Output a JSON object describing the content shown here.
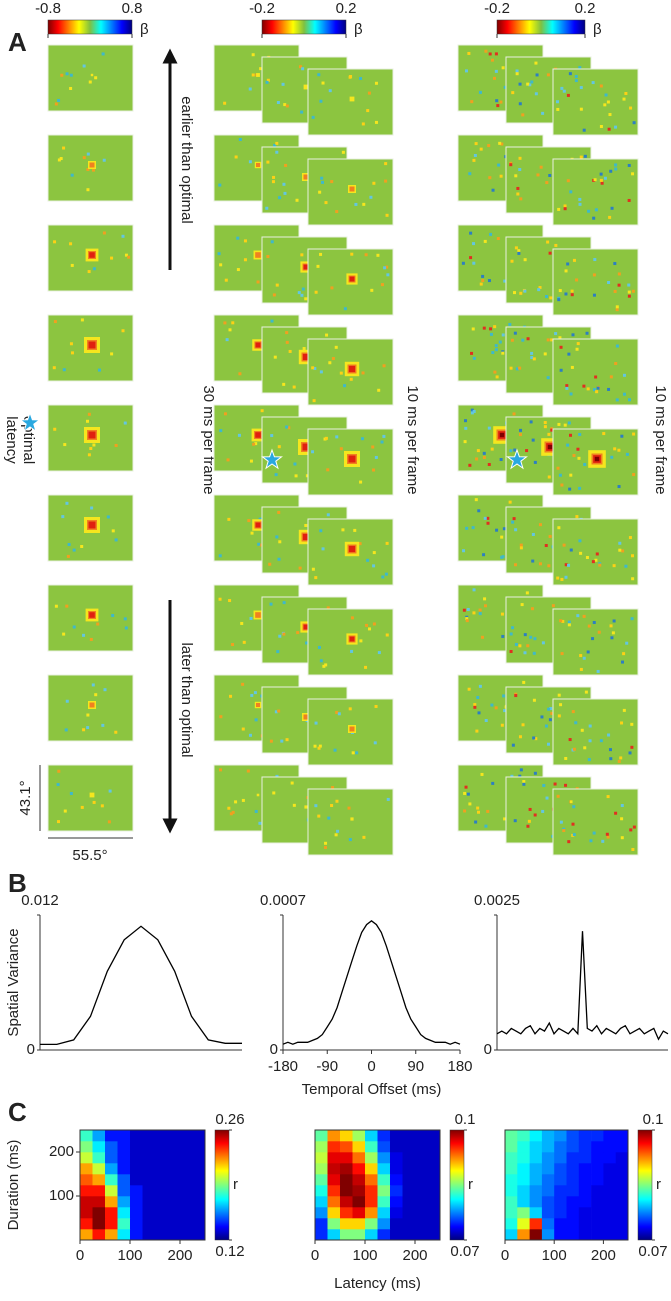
{
  "panel_labels": {
    "a": "A",
    "b": "B",
    "c": "C"
  },
  "panel_a": {
    "colorbars": [
      {
        "ticks": [
          -0.8,
          0.8
        ],
        "label": "β"
      },
      {
        "ticks": [
          -0.2,
          0.2
        ],
        "label": "β"
      },
      {
        "ticks": [
          -0.2,
          0.2
        ],
        "label": "β"
      }
    ],
    "earlier": "earlier than optimal",
    "later": "later than optimal",
    "optimal": [
      "optimal",
      "latency"
    ],
    "frame_rates": [
      "30 ms per frame",
      "10 ms per frame",
      "10 ms per frame"
    ],
    "scale_height": "43.1°",
    "scale_width": "55.5°"
  },
  "chart_data": [
    {
      "type": "line",
      "color": "#000000",
      "x": [
        -180,
        -150,
        -120,
        -90,
        -60,
        -30,
        0,
        30,
        60,
        90,
        120,
        150,
        180
      ],
      "values": [
        0.0005,
        0.0005,
        0.0009,
        0.003,
        0.007,
        0.0098,
        0.011,
        0.0098,
        0.007,
        0.003,
        0.0009,
        0.0006,
        0.0006
      ],
      "xlim": [
        -180,
        180
      ],
      "ylim": [
        0,
        0.012
      ],
      "yticks": [
        0,
        0.012
      ],
      "ylabel": "Spatial Variance"
    },
    {
      "type": "line",
      "color": "#000000",
      "x": [
        -180,
        -170,
        -160,
        -150,
        -140,
        -130,
        -120,
        -110,
        -100,
        -90,
        -80,
        -70,
        -60,
        -50,
        -40,
        -30,
        -20,
        -10,
        0,
        10,
        20,
        30,
        40,
        50,
        60,
        70,
        80,
        90,
        100,
        110,
        120,
        130,
        140,
        150,
        160,
        170,
        180
      ],
      "values": [
        3e-05,
        4e-05,
        3e-05,
        4e-05,
        4e-05,
        4e-05,
        5e-05,
        6e-05,
        8e-05,
        0.00012,
        0.00016,
        0.00022,
        0.0003,
        0.00038,
        0.00046,
        0.00054,
        0.00061,
        0.00065,
        0.00067,
        0.00065,
        0.00061,
        0.00054,
        0.00046,
        0.00038,
        0.0003,
        0.00022,
        0.00016,
        0.00012,
        8e-05,
        6e-05,
        5e-05,
        4e-05,
        4e-05,
        4e-05,
        3e-05,
        4e-05,
        3e-05
      ],
      "xlim": [
        -180,
        180
      ],
      "ylim": [
        0,
        0.0007
      ],
      "yticks": [
        0,
        0.0007
      ],
      "xticks": [
        -180,
        -90,
        0,
        90,
        180
      ],
      "xlabel": "Temporal Offset (ms)"
    },
    {
      "type": "line",
      "color": "#000000",
      "x": [
        -180,
        -170,
        -160,
        -150,
        -140,
        -130,
        -120,
        -110,
        -100,
        -90,
        -80,
        -70,
        -60,
        -50,
        -40,
        -30,
        -20,
        -10,
        0,
        10,
        20,
        30,
        40,
        50,
        60,
        70,
        80,
        90,
        100,
        110,
        120,
        130,
        140,
        150,
        160,
        170,
        180
      ],
      "values": [
        0.0003,
        0.00035,
        0.0003,
        0.0004,
        0.00035,
        0.0003,
        0.0004,
        0.00045,
        0.0003,
        0.0004,
        0.00035,
        0.0005,
        0.0003,
        0.0004,
        0.00035,
        0.0003,
        0.0004,
        0.0003,
        0.0022,
        0.0004,
        0.00035,
        0.00045,
        0.0003,
        0.0004,
        0.00035,
        0.0003,
        0.0004,
        0.00045,
        0.0003,
        0.00035,
        0.0004,
        0.0003,
        0.00035,
        0.0004,
        0.0002,
        0.00035,
        0.0003
      ],
      "xlim": [
        -180,
        180
      ],
      "ylim": [
        0,
        0.0025
      ],
      "yticks": [
        0,
        0.0025
      ]
    },
    {
      "type": "heatmap",
      "colormap": "jet",
      "x": [
        12.5,
        37.5,
        62.5,
        87.5,
        112.5,
        137.5,
        162.5,
        187.5,
        212.5,
        237.5
      ],
      "y": [
        12.5,
        37.5,
        62.5,
        87.5,
        112.5,
        137.5,
        162.5,
        187.5,
        212.5,
        237.5
      ],
      "values": [
        [
          0.22,
          0.24,
          0.22,
          0.17,
          0.14,
          0.13,
          0.13,
          0.13,
          0.13,
          0.13
        ],
        [
          0.24,
          0.26,
          0.24,
          0.18,
          0.14,
          0.13,
          0.13,
          0.13,
          0.13,
          0.13
        ],
        [
          0.25,
          0.26,
          0.24,
          0.17,
          0.14,
          0.13,
          0.13,
          0.13,
          0.13,
          0.13
        ],
        [
          0.25,
          0.25,
          0.22,
          0.16,
          0.14,
          0.13,
          0.13,
          0.13,
          0.13,
          0.13
        ],
        [
          0.24,
          0.24,
          0.2,
          0.15,
          0.14,
          0.13,
          0.13,
          0.13,
          0.13,
          0.13
        ],
        [
          0.23,
          0.22,
          0.18,
          0.15,
          0.13,
          0.13,
          0.13,
          0.13,
          0.13,
          0.13
        ],
        [
          0.22,
          0.2,
          0.16,
          0.14,
          0.13,
          0.13,
          0.13,
          0.13,
          0.13,
          0.13
        ],
        [
          0.2,
          0.18,
          0.15,
          0.14,
          0.13,
          0.13,
          0.13,
          0.13,
          0.13,
          0.13
        ],
        [
          0.19,
          0.17,
          0.15,
          0.14,
          0.13,
          0.13,
          0.13,
          0.13,
          0.13,
          0.13
        ],
        [
          0.18,
          0.16,
          0.14,
          0.14,
          0.13,
          0.13,
          0.13,
          0.13,
          0.13,
          0.13
        ]
      ],
      "xlim": [
        0,
        250
      ],
      "ylim": [
        0,
        250
      ],
      "xticks": [
        0,
        100,
        200
      ],
      "yticks": [
        100,
        200
      ],
      "ylabel": "Duration (ms)",
      "colorbar": {
        "ticks": [
          0.12,
          0.26
        ],
        "label": "r"
      }
    },
    {
      "type": "heatmap",
      "colormap": "jet",
      "x": [
        12.5,
        37.5,
        62.5,
        87.5,
        112.5,
        137.5,
        162.5,
        187.5,
        212.5,
        237.5
      ],
      "y": [
        12.5,
        37.5,
        62.5,
        87.5,
        112.5,
        137.5,
        162.5,
        187.5,
        212.5,
        237.5
      ],
      "values": [
        [
          0.075,
          0.08,
          0.085,
          0.085,
          0.08,
          0.075,
          0.072,
          0.072,
          0.072,
          0.072
        ],
        [
          0.075,
          0.085,
          0.09,
          0.09,
          0.085,
          0.078,
          0.072,
          0.072,
          0.072,
          0.072
        ],
        [
          0.078,
          0.09,
          0.095,
          0.097,
          0.092,
          0.08,
          0.073,
          0.072,
          0.072,
          0.072
        ],
        [
          0.08,
          0.093,
          0.098,
          0.1,
          0.095,
          0.083,
          0.074,
          0.072,
          0.072,
          0.072
        ],
        [
          0.082,
          0.095,
          0.1,
          0.099,
          0.095,
          0.085,
          0.075,
          0.072,
          0.072,
          0.072
        ],
        [
          0.084,
          0.097,
          0.1,
          0.098,
          0.093,
          0.083,
          0.074,
          0.072,
          0.072,
          0.072
        ],
        [
          0.086,
          0.098,
          0.099,
          0.096,
          0.09,
          0.08,
          0.073,
          0.072,
          0.072,
          0.072
        ],
        [
          0.087,
          0.097,
          0.097,
          0.093,
          0.086,
          0.078,
          0.073,
          0.072,
          0.072,
          0.072
        ],
        [
          0.086,
          0.095,
          0.094,
          0.09,
          0.083,
          0.076,
          0.072,
          0.072,
          0.072,
          0.072
        ],
        [
          0.084,
          0.092,
          0.09,
          0.086,
          0.08,
          0.075,
          0.072,
          0.072,
          0.072,
          0.072
        ]
      ],
      "xlim": [
        0,
        250
      ],
      "ylim": [
        0,
        250
      ],
      "xticks": [
        0,
        100,
        200
      ],
      "xlabel": "Latency (ms)",
      "colorbar": {
        "ticks": [
          0.07,
          0.1
        ],
        "label": "r"
      }
    },
    {
      "type": "heatmap",
      "colormap": "jet",
      "x": [
        12.5,
        37.5,
        62.5,
        87.5,
        112.5,
        137.5,
        162.5,
        187.5,
        212.5,
        237.5
      ],
      "y": [
        12.5,
        37.5,
        62.5,
        87.5,
        112.5,
        137.5,
        162.5,
        187.5,
        212.5,
        237.5
      ],
      "values": [
        [
          0.08,
          0.092,
          0.1,
          0.078,
          0.074,
          0.074,
          0.073,
          0.073,
          0.073,
          0.073
        ],
        [
          0.082,
          0.088,
          0.095,
          0.077,
          0.074,
          0.074,
          0.073,
          0.073,
          0.073,
          0.073
        ],
        [
          0.083,
          0.085,
          0.08,
          0.076,
          0.075,
          0.074,
          0.073,
          0.073,
          0.073,
          0.073
        ],
        [
          0.083,
          0.08,
          0.078,
          0.076,
          0.075,
          0.074,
          0.074,
          0.073,
          0.073,
          0.073
        ],
        [
          0.082,
          0.08,
          0.078,
          0.077,
          0.075,
          0.075,
          0.074,
          0.073,
          0.073,
          0.073
        ],
        [
          0.082,
          0.081,
          0.079,
          0.077,
          0.076,
          0.075,
          0.074,
          0.074,
          0.073,
          0.073
        ],
        [
          0.083,
          0.081,
          0.079,
          0.078,
          0.076,
          0.075,
          0.074,
          0.074,
          0.073,
          0.073
        ],
        [
          0.083,
          0.082,
          0.08,
          0.078,
          0.077,
          0.075,
          0.075,
          0.074,
          0.074,
          0.073
        ],
        [
          0.084,
          0.082,
          0.08,
          0.079,
          0.077,
          0.076,
          0.075,
          0.074,
          0.074,
          0.074
        ],
        [
          0.084,
          0.083,
          0.081,
          0.079,
          0.078,
          0.076,
          0.075,
          0.075,
          0.074,
          0.074
        ]
      ],
      "xlim": [
        0,
        250
      ],
      "ylim": [
        0,
        250
      ],
      "xticks": [
        0,
        100,
        200
      ],
      "colorbar": {
        "ticks": [
          0.07,
          0.1
        ],
        "label": "r"
      }
    }
  ]
}
